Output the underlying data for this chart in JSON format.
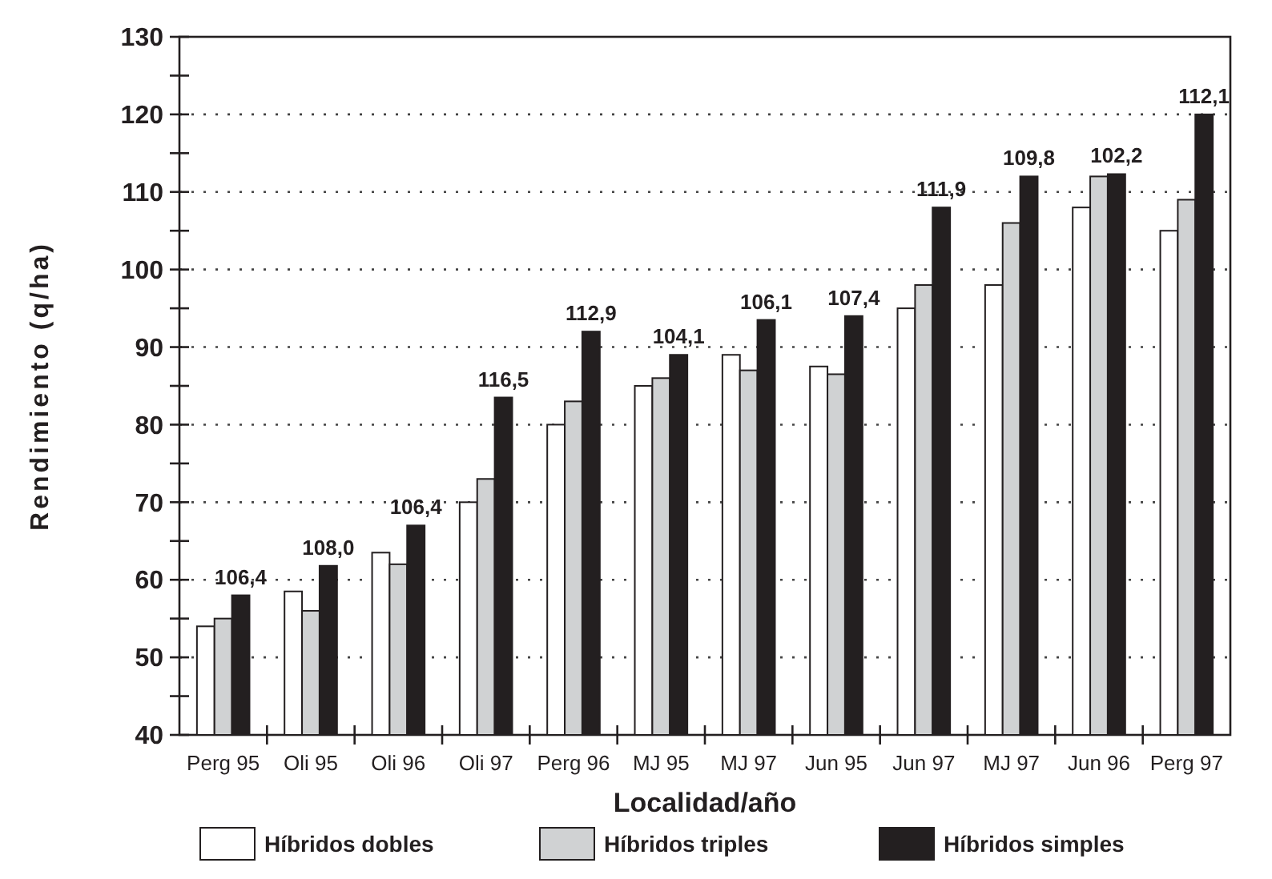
{
  "chart_data": {
    "type": "bar",
    "xlabel": "Localidad/año",
    "ylabel": "Rendimiento (q/ha)",
    "categories": [
      "Perg 95",
      "Oli 95",
      "Oli 96",
      "Oli 97",
      "Perg 96",
      "MJ 95",
      "MJ 97",
      "Jun 95",
      "Jun 97",
      "MJ 97",
      "Jun 96",
      "Perg 97"
    ],
    "series": [
      {
        "name": "Híbridos dobles",
        "color": "#ffffff",
        "values": [
          54,
          58.5,
          63.5,
          70,
          80,
          85,
          89,
          87.5,
          95,
          98,
          108,
          105
        ]
      },
      {
        "name": "Híbridos triples",
        "color": "#d0d2d3",
        "values": [
          55,
          56,
          62,
          73,
          83,
          86,
          87,
          86.5,
          98,
          106,
          112,
          109
        ]
      },
      {
        "name": "Híbridos simples",
        "color": "#231f20",
        "values": [
          58,
          61.8,
          67,
          83.5,
          92,
          89,
          93.5,
          94,
          108,
          112,
          112.3,
          120
        ]
      }
    ],
    "annotations": [
      "106,4",
      "108,0",
      "106,4",
      "116,5",
      "112,9",
      "104,1",
      "106,1",
      "107,4",
      "111,9",
      "109,8",
      "102,2",
      "112,1"
    ],
    "ylim": [
      40,
      130
    ],
    "yticks": [
      40,
      {
        "value": 45,
        "label": null
      },
      50,
      {
        "value": 55,
        "label": null
      },
      60,
      {
        "value": 65,
        "label": null
      },
      70,
      {
        "value": 75,
        "label": null
      },
      80,
      {
        "value": 85,
        "label": null
      },
      90,
      {
        "value": 95,
        "label": null
      },
      100,
      {
        "value": 105,
        "label": null
      },
      110,
      {
        "value": 115,
        "label": null
      },
      120,
      {
        "value": 125,
        "label": null
      },
      130
    ],
    "grid": "y",
    "legend": "bottom"
  }
}
